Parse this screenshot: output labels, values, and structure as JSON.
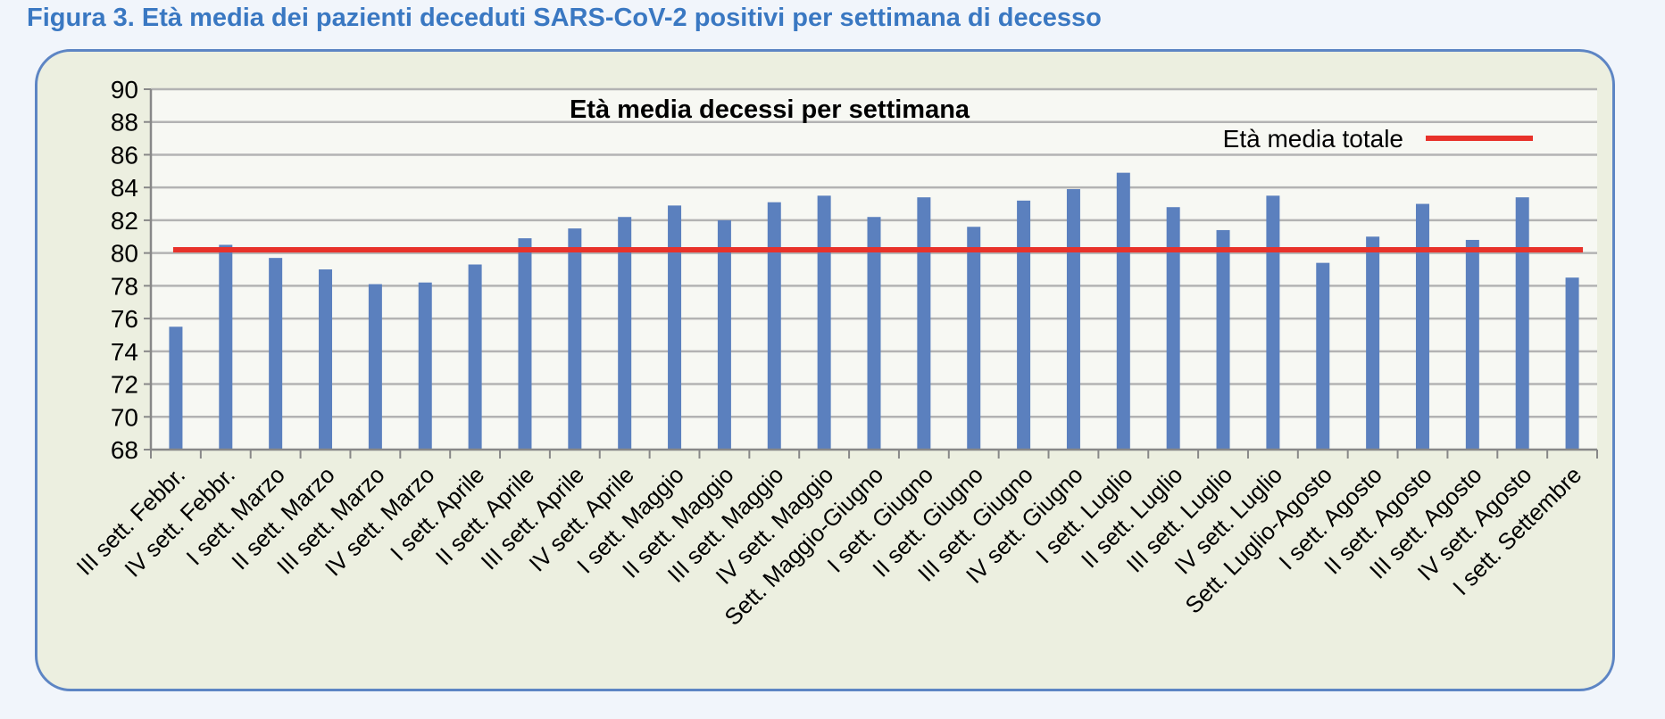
{
  "caption": "Figura 3. Età media dei pazienti deceduti SARS-CoV-2 positivi per settimana di decesso",
  "chart_data": {
    "type": "bar",
    "title": "Età media decessi per settimana",
    "xlabel": "",
    "ylabel": "",
    "ylim": [
      68,
      90
    ],
    "ytick_step": 2,
    "grid": "horizontal",
    "legend_position": "top-right",
    "categories": [
      "III sett. Febbr.",
      "IV sett. Febbr.",
      "I sett. Marzo",
      "II sett. Marzo",
      "III sett. Marzo",
      "IV sett. Marzo",
      "I sett. Aprile",
      "II sett. Aprile",
      "III sett. Aprile",
      "IV sett. Aprile",
      "I sett. Maggio",
      "II sett. Maggio",
      "III sett. Maggio",
      "IV sett. Maggio",
      "Sett. Maggio-Giugno",
      "I sett. Giugno",
      "II sett. Giugno",
      "III sett. Giugno",
      "IV sett. Giugno",
      "I sett. Luglio",
      "II sett. Luglio",
      "III sett. Luglio",
      "IV sett. Luglio",
      "Sett. Luglio-Agosto",
      "I sett. Agosto",
      "II sett. Agosto",
      "III sett. Agosto",
      "IV sett. Agosto",
      "I sett. Settembre"
    ],
    "series": [
      {
        "values": [
          75.5,
          80.5,
          79.7,
          79.0,
          78.1,
          78.2,
          79.3,
          80.9,
          81.5,
          82.2,
          82.9,
          82.0,
          83.1,
          83.5,
          82.2,
          83.4,
          81.6,
          83.2,
          83.9,
          84.9,
          82.8,
          81.4,
          83.5,
          79.4,
          81.0,
          83.0,
          80.8,
          83.4,
          78.5
        ],
        "color": "#5b80be"
      }
    ],
    "reference_line": {
      "name": "Età media totale",
      "value": 80.2,
      "color": "#e8322a"
    }
  }
}
